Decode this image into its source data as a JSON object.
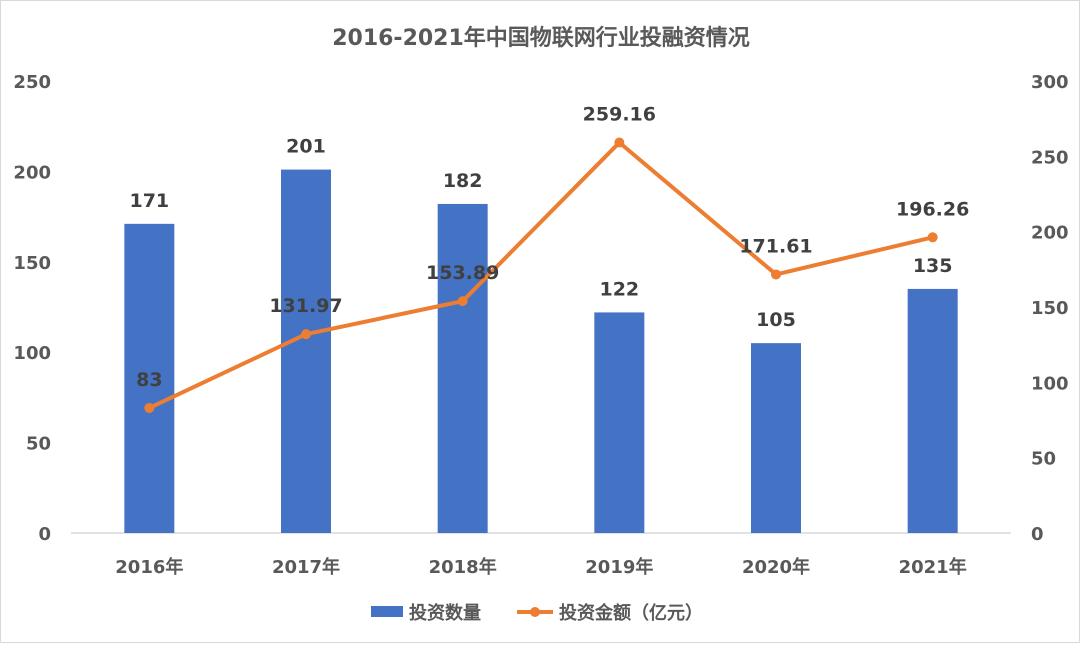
{
  "chart_data": {
    "type": "bar+line",
    "title": "2016-2021年中国物联网行业投融资情况",
    "categories": [
      "2016年",
      "2017年",
      "2018年",
      "2019年",
      "2020年",
      "2021年"
    ],
    "series": [
      {
        "name": "投资数量",
        "type": "bar",
        "axis": "left",
        "color": "#4472C4",
        "values": [
          171,
          201,
          182,
          122,
          105,
          135
        ]
      },
      {
        "name": "投资金额（亿元）",
        "type": "line",
        "axis": "right",
        "color": "#ED7D31",
        "values": [
          83,
          131.97,
          153.89,
          259.16,
          171.61,
          196.26
        ]
      }
    ],
    "left_axis": {
      "ticks": [
        0,
        50,
        100,
        150,
        200,
        250
      ],
      "ylim": [
        0,
        250
      ]
    },
    "right_axis": {
      "ticks": [
        0,
        50,
        100,
        150,
        200,
        250,
        300
      ],
      "ylim": [
        0,
        300
      ]
    },
    "xlabel": "",
    "ylabel": "",
    "grid": false,
    "legend_position": "bottom"
  },
  "labels": {
    "title": "2016-2021年中国物联网行业投融资情况",
    "legend": [
      "投资数量",
      "投资金额（亿元）"
    ],
    "bar_values": [
      "171",
      "201",
      "182",
      "122",
      "105",
      "135"
    ],
    "line_values": [
      "83",
      "131.97",
      "153.89",
      "259.16",
      "171.61",
      "196.26"
    ]
  }
}
